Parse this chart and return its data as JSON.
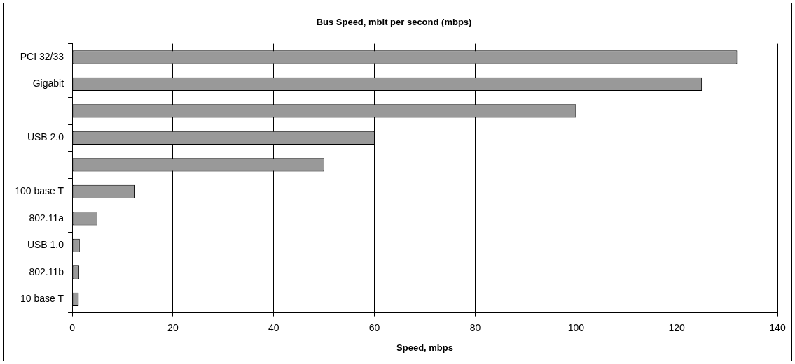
{
  "chart_data": {
    "type": "bar",
    "orientation": "horizontal",
    "title": "Bus Speed, mbit per second (mbps)",
    "xlabel": "Speed, mbps",
    "categories": [
      "PCI 32/33",
      "Gigabit",
      null,
      "USB 2.0",
      null,
      "100 base T",
      "802.11a",
      "USB 1.0",
      "802.11b",
      "10 base T"
    ],
    "values": [
      132,
      125,
      100,
      60,
      50,
      12.5,
      5,
      1.5,
      1.4,
      1.3
    ],
    "color": "#999999",
    "xlim": [
      0,
      140
    ],
    "xticks": [
      0,
      20,
      40,
      60,
      80,
      100,
      120,
      140
    ],
    "grid": "x",
    "legend": false
  }
}
